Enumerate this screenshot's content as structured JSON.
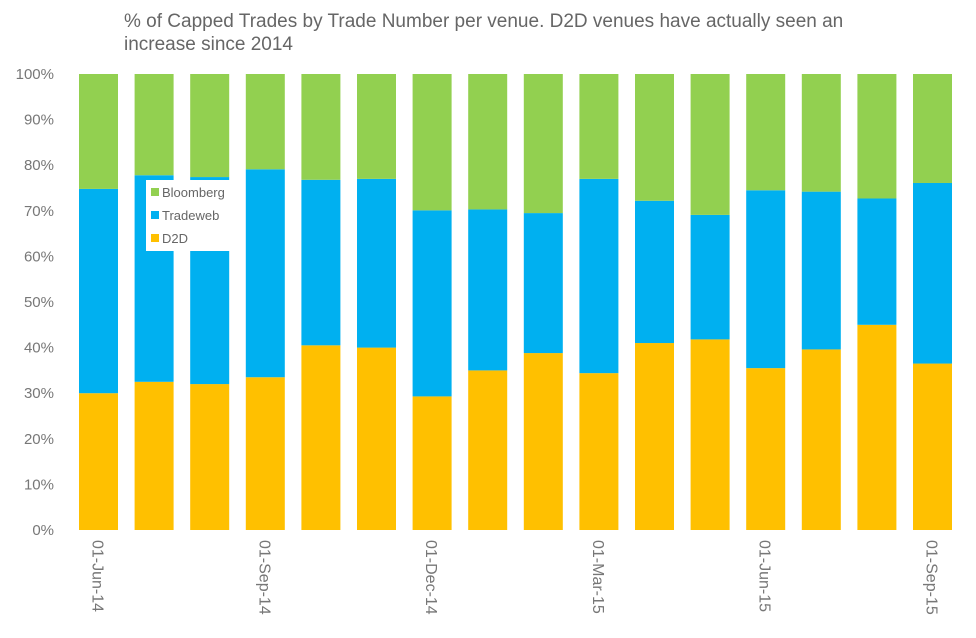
{
  "chart_data": {
    "type": "bar",
    "stacked": true,
    "normalized": true,
    "title": "% of Capped Trades by Trade Number per venue. D2D venues have actually seen an increase since 2014",
    "xlabel": "",
    "ylabel": "",
    "ylim": [
      0,
      100
    ],
    "yticks": [
      "0%",
      "10%",
      "20%",
      "30%",
      "40%",
      "50%",
      "60%",
      "70%",
      "80%",
      "90%",
      "100%"
    ],
    "categories": [
      "01-Jun-14",
      "",
      "",
      "01-Sep-14",
      "",
      "",
      "01-Dec-14",
      "",
      "",
      "01-Mar-15",
      "",
      "",
      "01-Jun-15",
      "",
      "",
      "01-Sep-15"
    ],
    "xtick_labels": [
      {
        "index": 0,
        "label": "01-Jun-14"
      },
      {
        "index": 3,
        "label": "01-Sep-14"
      },
      {
        "index": 6,
        "label": "01-Dec-14"
      },
      {
        "index": 9,
        "label": "01-Mar-15"
      },
      {
        "index": 12,
        "label": "01-Jun-15"
      },
      {
        "index": 15,
        "label": "01-Sep-15"
      }
    ],
    "series": [
      {
        "name": "D2D",
        "color": "#FFC000",
        "values": [
          30,
          32.5,
          32,
          33.5,
          40.5,
          40,
          29.3,
          35,
          38.8,
          34.4,
          41,
          41.8,
          35.5,
          39.6,
          45,
          36.5
        ]
      },
      {
        "name": "Tradeweb",
        "color": "#00B0F0",
        "values": [
          44.8,
          45.3,
          45.4,
          45.6,
          36.3,
          37,
          40.8,
          35.3,
          30.7,
          42.6,
          31.2,
          27.3,
          39,
          34.6,
          27.7,
          39.6
        ]
      },
      {
        "name": "Bloomberg",
        "color": "#92D050",
        "values": [
          25.2,
          22.2,
          22.6,
          20.9,
          23.2,
          23,
          29.9,
          29.7,
          30.5,
          23,
          27.8,
          30.9,
          25.5,
          25.8,
          27.3,
          23.9
        ]
      }
    ],
    "legend": {
      "position": "top-left",
      "entries": [
        "Bloomberg",
        "Tradeweb",
        "D2D"
      ]
    },
    "grid": false
  }
}
